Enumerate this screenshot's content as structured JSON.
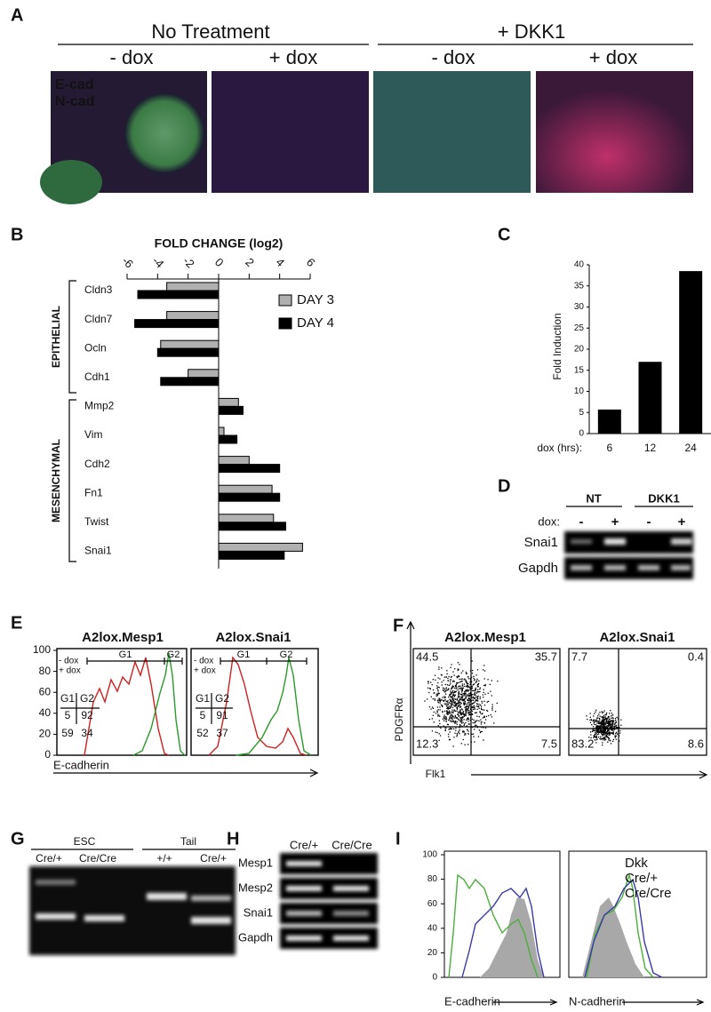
{
  "figure": {
    "panel_labels": [
      "A",
      "B",
      "C",
      "D",
      "E",
      "F",
      "G",
      "H",
      "I"
    ],
    "panel_a": {
      "treatments": [
        "No Treatment",
        "+ DKK1"
      ],
      "conditions": [
        "- dox",
        "+ dox",
        "- dox",
        "+ dox"
      ],
      "stains": [
        "E-cad",
        "N-cad"
      ]
    },
    "panel_d": {
      "treatments": [
        "NT",
        "DKK1"
      ],
      "dox_label": "dox:",
      "dox": [
        "-",
        "+",
        "-",
        "+"
      ],
      "genes": [
        "Snai1",
        "Gapdh"
      ]
    },
    "panel_e": {
      "plots": [
        {
          "title": "A2lox.Mesp1",
          "gates": [
            "G1",
            "G2"
          ],
          "legend": [
            "- dox",
            "+ dox"
          ],
          "table_headers": [
            "G1",
            "G2"
          ],
          "minus_dox": [
            5,
            92
          ],
          "plus_dox": [
            59,
            34
          ]
        },
        {
          "title": "A2lox.Snai1",
          "gates": [
            "G1",
            "G2"
          ],
          "legend": [
            "- dox",
            "+ dox"
          ],
          "table_headers": [
            "G1",
            "G2"
          ],
          "minus_dox": [
            5,
            91
          ],
          "plus_dox": [
            52,
            37
          ]
        }
      ],
      "yticks": [
        0,
        20,
        40,
        60,
        80,
        100
      ],
      "xlabel": "E-cadherin"
    },
    "panel_f": {
      "plots": [
        {
          "title": "A2lox.Mesp1",
          "quadrants": [
            44.5,
            35.7,
            12.3,
            7.5
          ]
        },
        {
          "title": "A2lox.Snai1",
          "quadrants": [
            7.7,
            0.4,
            83.2,
            8.6
          ]
        }
      ],
      "ylabel": "PDGFRα",
      "xlabel": "Flk1"
    },
    "panel_g": {
      "groups": [
        "ESC",
        "Tail"
      ],
      "lanes": [
        "Cre/+",
        "Cre/Cre",
        "+/+",
        "Cre/+"
      ]
    },
    "panel_h": {
      "lanes": [
        "Cre/+",
        "Cre/Cre"
      ],
      "genes": [
        "Mesp1",
        "Mesp2",
        "Snai1",
        "Gapdh"
      ]
    },
    "panel_i": {
      "yticks": [
        0,
        20,
        40,
        60,
        80,
        100
      ],
      "legend": [
        {
          "name": "Dkk",
          "color": "#a8a8a8"
        },
        {
          "name": "Cre/+",
          "color": "#4caf3c"
        },
        {
          "name": "Cre/Cre",
          "color": "#3a3aa8"
        }
      ],
      "xlabels": [
        "E-cadherin",
        "N-cadherin"
      ]
    }
  },
  "chart_data": [
    {
      "type": "bar",
      "orientation": "horizontal",
      "title": "FOLD CHANGE (log2)",
      "groups": [
        "EPITHELIAL",
        "MESENCHYMAL"
      ],
      "categories": [
        "Cldn3",
        "Cldn7",
        "Ocln",
        "Cdh1",
        "Mmp2",
        "Vim",
        "Cdh2",
        "Fn1",
        "Twist",
        "Snai1"
      ],
      "series": [
        {
          "name": "DAY 3",
          "color": "#b0b0b0",
          "values": [
            -3.4,
            -3.4,
            -3.8,
            -2.0,
            1.3,
            0.35,
            2.0,
            3.5,
            3.6,
            5.5
          ]
        },
        {
          "name": "DAY 4",
          "color": "#000000",
          "values": [
            -5.3,
            -5.5,
            -4.0,
            -3.8,
            1.6,
            1.2,
            4.0,
            4.0,
            4.4,
            4.3
          ]
        }
      ],
      "xlim": [
        -6,
        6
      ],
      "xticks": [
        -6,
        -4,
        -2,
        0,
        2,
        4,
        6
      ]
    },
    {
      "type": "bar",
      "orientation": "vertical",
      "ylabel": "Fold Induction",
      "xlabel": "dox (hrs):",
      "categories": [
        "6",
        "12",
        "24"
      ],
      "values": [
        5.7,
        17,
        38.5
      ],
      "color": "#000000",
      "ylim": [
        0,
        40
      ],
      "yticks": [
        0,
        5,
        10,
        15,
        20,
        25,
        30,
        35,
        40
      ]
    }
  ]
}
